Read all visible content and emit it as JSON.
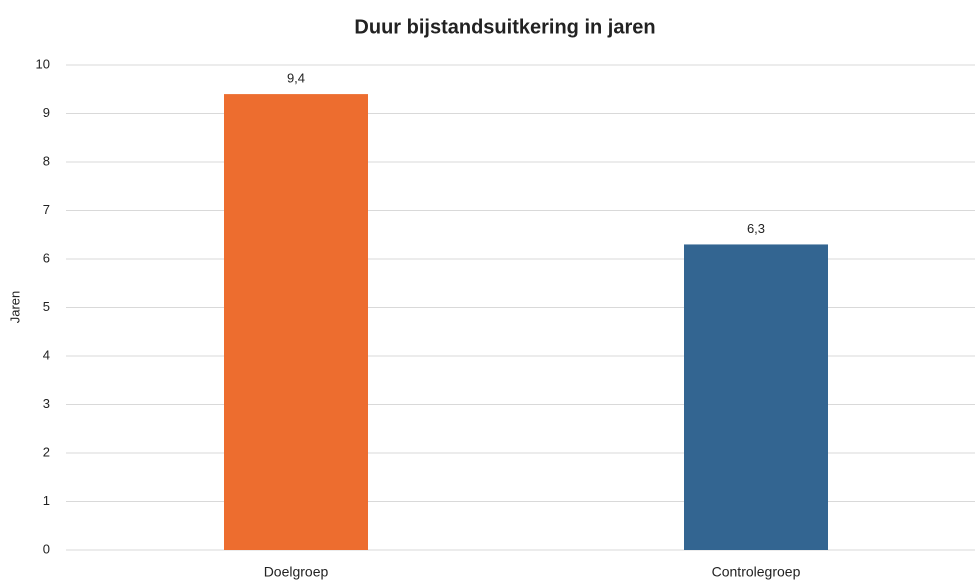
{
  "chart_data": {
    "type": "bar",
    "title": "Duur bijstandsuitkering in jaren",
    "y_label": "Jaren",
    "categories": [
      "Doelgroep",
      "Controlegroep"
    ],
    "values": [
      9.4,
      6.3
    ],
    "value_labels": [
      "9,4",
      "6,3"
    ],
    "colors": [
      "#ed6d2f",
      "#336591"
    ],
    "ylim": [
      0,
      10
    ],
    "yticks": [
      0,
      1,
      2,
      3,
      4,
      5,
      6,
      7,
      8,
      9,
      10
    ],
    "grid": true
  }
}
